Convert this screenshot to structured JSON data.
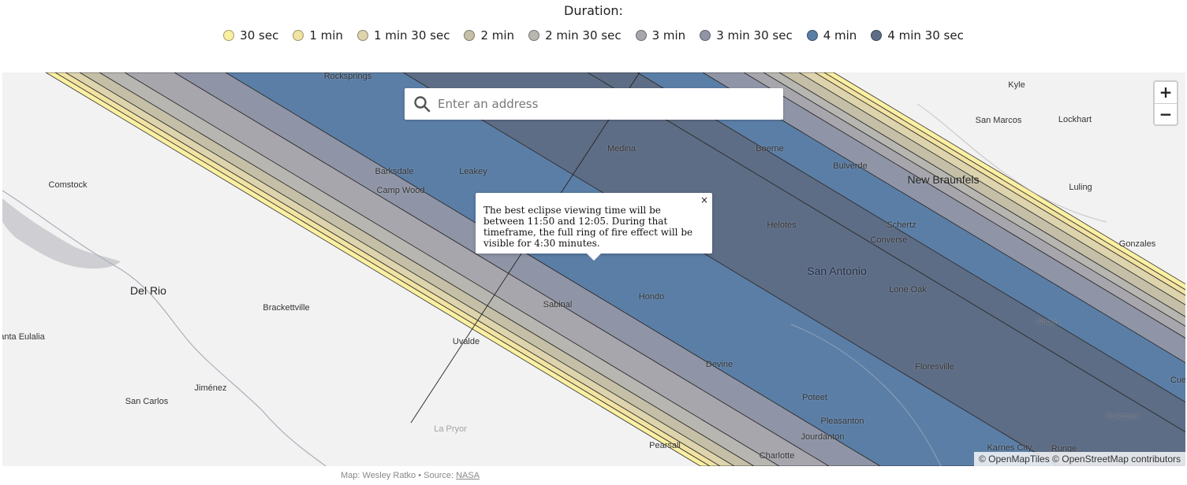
{
  "legend": {
    "title": "Duration:",
    "items": [
      {
        "label": "30 sec",
        "color": "#fbf0a2"
      },
      {
        "label": "1 min",
        "color": "#f2e3a3"
      },
      {
        "label": "1 min 30 sec",
        "color": "#ddd4ad"
      },
      {
        "label": "2 min",
        "color": "#c4bfa6"
      },
      {
        "label": "2 min 30 sec",
        "color": "#b8b6b1"
      },
      {
        "label": "3 min",
        "color": "#a8a6ad"
      },
      {
        "label": "3 min 30 sec",
        "color": "#8f95a6"
      },
      {
        "label": "4 min",
        "color": "#5b7ea6"
      },
      {
        "label": "4 min 30 sec",
        "color": "#5e6d86"
      }
    ]
  },
  "search": {
    "placeholder": "Enter an address"
  },
  "zoom": {
    "in_label": "+",
    "out_label": "−"
  },
  "popup": {
    "text": "The best eclipse viewing time will be between 11:50 and 12:05. During that timeframe, the full ring of fire effect will be visible for 4:30 minutes.",
    "close_label": "×"
  },
  "places": [
    {
      "name": "Rocksprings"
    },
    {
      "name": "Kyle"
    },
    {
      "name": "San Marcos"
    },
    {
      "name": "Lockhart"
    },
    {
      "name": "Medina"
    },
    {
      "name": "Boerne"
    },
    {
      "name": "Bulverde"
    },
    {
      "name": "New Braunfels"
    },
    {
      "name": "Barksdale"
    },
    {
      "name": "Leakey"
    },
    {
      "name": "Comstock"
    },
    {
      "name": "Camp Wood"
    },
    {
      "name": "Luling"
    },
    {
      "name": "Schertz"
    },
    {
      "name": "Helotes"
    },
    {
      "name": "Converse"
    },
    {
      "name": "Gonzales"
    },
    {
      "name": "San Antonio"
    },
    {
      "name": "Del Rio"
    },
    {
      "name": "Lone Oak"
    },
    {
      "name": "Sabinal"
    },
    {
      "name": "Hondo"
    },
    {
      "name": "Brackettville"
    },
    {
      "name": "Nixon"
    },
    {
      "name": "anta Eulalia"
    },
    {
      "name": "Uvalde"
    },
    {
      "name": "Devine"
    },
    {
      "name": "Floresville"
    },
    {
      "name": "Cue"
    },
    {
      "name": "Jiménez"
    },
    {
      "name": "Poteet"
    },
    {
      "name": "San Carlos"
    },
    {
      "name": "Pleasanton"
    },
    {
      "name": "Yorktown"
    },
    {
      "name": "La Pryor"
    },
    {
      "name": "Jourdanton"
    },
    {
      "name": "Pearsall"
    },
    {
      "name": "Karnes City"
    },
    {
      "name": "Runge"
    },
    {
      "name": "Charlotte"
    }
  ],
  "attribution": "© OpenMapTiles © OpenStreetMap contributors",
  "credit": {
    "prefix": "Map: Wesley Ratko • Source: ",
    "link": "NASA"
  }
}
